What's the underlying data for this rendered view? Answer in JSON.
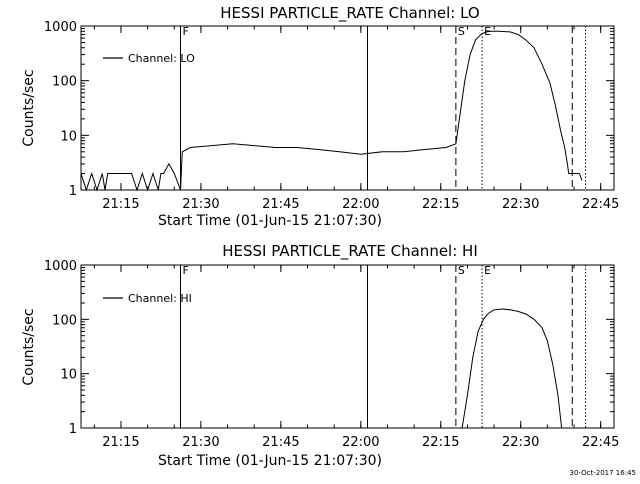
{
  "footer": {
    "timestamp": "30-Oct-2017 16:45"
  },
  "chart_data": [
    {
      "type": "line",
      "title": "HESSI PARTICLE_RATE Channel: LO",
      "xlabel": "Start Time (01-Jun-15 21:07:30)",
      "ylabel": "Counts/sec",
      "y_scale": "log",
      "xlim": [
        "21:07:30",
        "22:47:30"
      ],
      "ylim": [
        1,
        1000
      ],
      "x_ticks": [
        "21:15",
        "21:30",
        "21:45",
        "22:00",
        "22:15",
        "22:30",
        "22:45"
      ],
      "y_ticks": [
        "1",
        "10",
        "100",
        "1000"
      ],
      "legend": {
        "entry": "Channel: LO",
        "placement": "top-left"
      },
      "markers": [
        {
          "label": "F",
          "time": "21:26:10",
          "style": "solid"
        },
        {
          "label": "",
          "time": "22:01:15",
          "style": "solid"
        },
        {
          "label": "S",
          "time": "22:17:50",
          "style": "dashed"
        },
        {
          "label": "E",
          "time": "22:22:45",
          "style": "dotted"
        },
        {
          "label": "",
          "time": "22:39:40",
          "style": "dashed"
        },
        {
          "label": "",
          "time": "22:42:10",
          "style": "dotted"
        }
      ],
      "series": [
        {
          "x": [
            "21:07:30",
            "21:08:30",
            "21:09:30",
            "21:10:30",
            "21:11:30",
            "21:12:00",
            "21:12:30",
            "21:13:30",
            "21:15:30",
            "21:17:00",
            "21:18:00",
            "21:19:00",
            "21:20:00",
            "21:21:00",
            "21:22:00",
            "21:22:30",
            "21:23:00",
            "21:24:00",
            "21:25:00",
            "21:26:10",
            "21:26:30",
            "21:28:00",
            "21:32:00",
            "21:36:00",
            "21:40:00",
            "21:44:00",
            "21:48:00",
            "21:52:00",
            "21:56:00",
            "22:00:00",
            "22:04:00",
            "22:08:00",
            "22:12:00",
            "22:16:00",
            "22:17:50",
            "22:18:30",
            "22:19:30",
            "22:20:30",
            "22:21:30",
            "22:22:30",
            "22:23:30",
            "22:24:30",
            "22:26:00",
            "22:28:00",
            "22:29:30",
            "22:31:00",
            "22:32:30",
            "22:34:00",
            "22:35:30",
            "22:36:30",
            "22:37:30",
            "22:38:15",
            "22:38:45",
            "22:39:00",
            "22:39:40",
            "22:40:30",
            "22:41:00",
            "22:41:30"
          ],
          "y": [
            2,
            1,
            2,
            1,
            2,
            1,
            2,
            2,
            2,
            2,
            1,
            2,
            1,
            2,
            1,
            2,
            2,
            3,
            2,
            1,
            5,
            6,
            6.5,
            7,
            6.5,
            6,
            6,
            5.5,
            5,
            4.5,
            5,
            5,
            5.5,
            6,
            7,
            20,
            100,
            300,
            550,
            700,
            780,
            800,
            800,
            780,
            700,
            550,
            400,
            200,
            90,
            35,
            12,
            6,
            3,
            2,
            2,
            2,
            2,
            1.5
          ]
        }
      ]
    },
    {
      "type": "line",
      "title": "HESSI PARTICLE_RATE Channel: HI",
      "xlabel": "Start Time (01-Jun-15 21:07:30)",
      "ylabel": "Counts/sec",
      "y_scale": "log",
      "xlim": [
        "21:07:30",
        "22:47:30"
      ],
      "ylim": [
        1,
        1000
      ],
      "x_ticks": [
        "21:15",
        "21:30",
        "21:45",
        "22:00",
        "22:15",
        "22:30",
        "22:45"
      ],
      "y_ticks": [
        "1",
        "10",
        "100",
        "1000"
      ],
      "legend": {
        "entry": "Channel: HI",
        "placement": "top-left"
      },
      "markers": [
        {
          "label": "F",
          "time": "21:26:10",
          "style": "solid"
        },
        {
          "label": "",
          "time": "22:01:15",
          "style": "solid"
        },
        {
          "label": "S",
          "time": "22:17:50",
          "style": "dashed"
        },
        {
          "label": "E",
          "time": "22:22:45",
          "style": "dotted"
        },
        {
          "label": "",
          "time": "22:39:40",
          "style": "dashed"
        },
        {
          "label": "",
          "time": "22:42:10",
          "style": "dotted"
        }
      ],
      "series": [
        {
          "x": [
            "22:19:00",
            "22:20:00",
            "22:21:00",
            "22:22:00",
            "22:23:00",
            "22:24:00",
            "22:25:00",
            "22:26:30",
            "22:28:00",
            "22:29:30",
            "22:31:00",
            "22:32:30",
            "22:34:00",
            "22:35:00",
            "22:36:00",
            "22:37:00",
            "22:37:40"
          ],
          "y": [
            1,
            4,
            20,
            60,
            100,
            130,
            150,
            155,
            150,
            140,
            125,
            100,
            70,
            40,
            15,
            4,
            1
          ]
        }
      ]
    }
  ]
}
